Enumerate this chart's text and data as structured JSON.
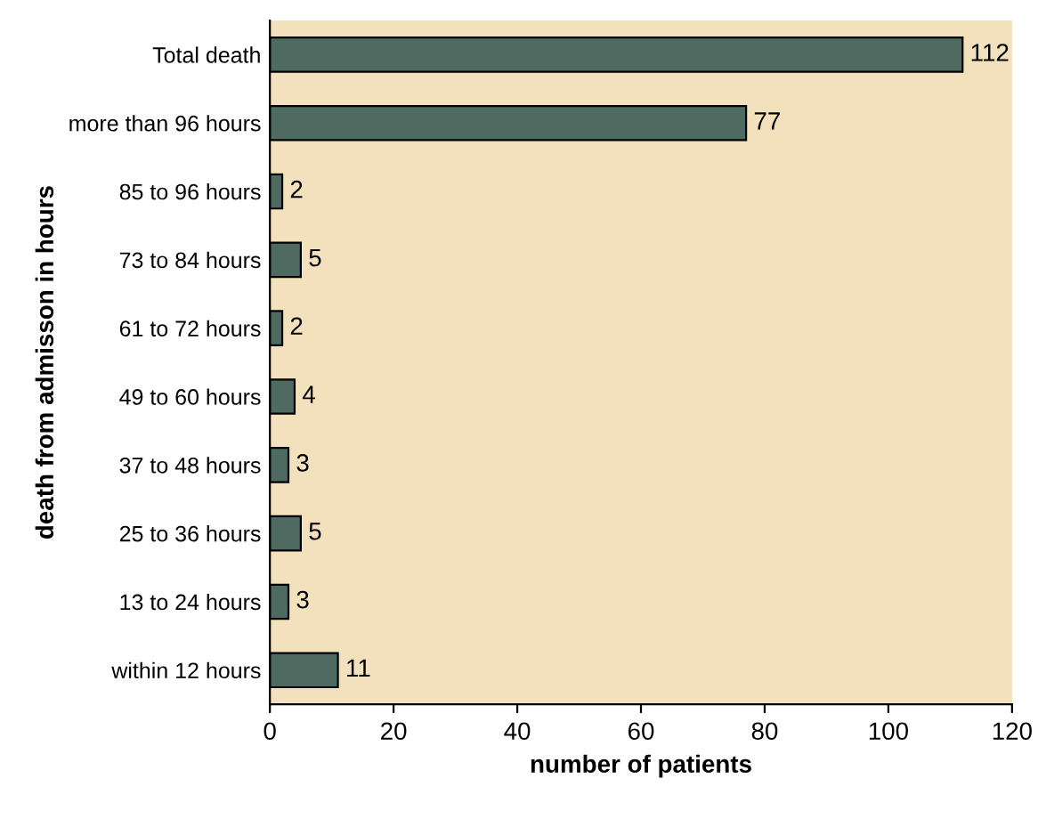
{
  "chart_data": {
    "type": "bar",
    "orientation": "horizontal",
    "xlabel": "number of patients",
    "ylabel": "death from admisson in hours",
    "categories": [
      "Total death",
      "more than 96 hours",
      "85 to 96 hours",
      "73 to 84 hours",
      "61 to 72 hours",
      "49 to 60 hours",
      "37 to 48 hours",
      "25 to 36 hours",
      "13 to 24 hours",
      "within 12 hours"
    ],
    "values": [
      112,
      77,
      2,
      5,
      2,
      4,
      3,
      5,
      3,
      11
    ],
    "color": "#4f6a60",
    "xlim": [
      0,
      120
    ],
    "xticks": [
      0,
      20,
      40,
      60,
      80,
      100,
      120
    ],
    "grid": false,
    "legend": false,
    "data_labels": true
  }
}
